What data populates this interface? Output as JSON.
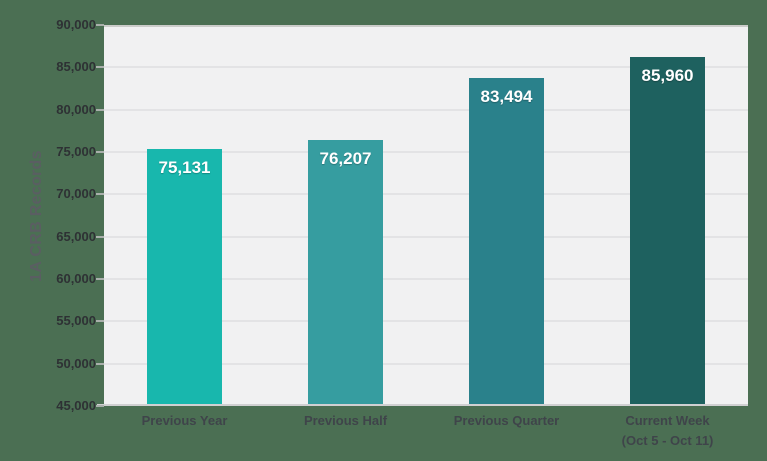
{
  "page": {
    "background_color": "#4b6f53"
  },
  "chart_data": {
    "type": "bar",
    "title": "",
    "xlabel": "",
    "ylabel": "1A CRB Records",
    "categories": [
      "Previous Year",
      "Previous Half",
      "Previous Quarter",
      "Current Week\n(Oct 5 - Oct 11)"
    ],
    "values": [
      75131,
      76207,
      83494,
      85960
    ],
    "value_labels": [
      "75,131",
      "76,207",
      "83,494",
      "85,960"
    ],
    "bar_slugs": [
      "previous-year",
      "previous-half",
      "previous-quarter",
      "current-week"
    ],
    "bar_colors": [
      "#18b7ad",
      "#369da0",
      "#2a818b",
      "#1e615f"
    ],
    "ylim": [
      45000,
      90000
    ],
    "yticks": [
      {
        "value": 45000,
        "label": "45,000"
      },
      {
        "value": 50000,
        "label": "50,000"
      },
      {
        "value": 55000,
        "label": "55,000"
      },
      {
        "value": 60000,
        "label": "60,000"
      },
      {
        "value": 65000,
        "label": "65,000"
      },
      {
        "value": 70000,
        "label": "70,000"
      },
      {
        "value": 75000,
        "label": "75,000"
      },
      {
        "value": 80000,
        "label": "80,000"
      },
      {
        "value": 85000,
        "label": "85,000"
      },
      {
        "value": 90000,
        "label": "90,000"
      }
    ],
    "grid": "horizontal",
    "legend": "none",
    "colors": {
      "plot_background": "#f1f1f2",
      "gridline": "#e3e3e5",
      "top_gridline": "#cbccca",
      "axis_line": "#d0d0d2",
      "tick_mark": "#a9afab",
      "ytick_label": "#2e3134",
      "xtick_label": "#3f444a",
      "ylabel_text": "#5a5e62",
      "value_label_text": "#ffffff"
    }
  }
}
